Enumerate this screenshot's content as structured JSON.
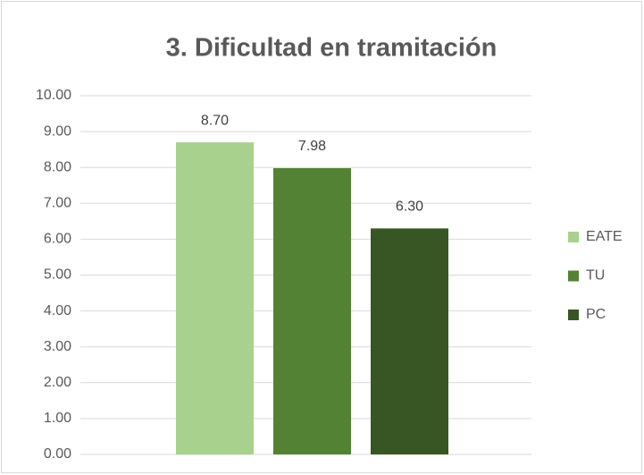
{
  "chart_data": {
    "type": "bar",
    "title": "3. Dificultad en tramitación",
    "categories": [
      null
    ],
    "series": [
      {
        "name": "EATE",
        "color": "#a9d18e",
        "values": [
          8.7
        ],
        "value_labels": [
          "8.70"
        ]
      },
      {
        "name": "TU",
        "color": "#548235",
        "values": [
          7.98
        ],
        "value_labels": [
          "7.98"
        ]
      },
      {
        "name": "PC",
        "color": "#375623",
        "values": [
          6.3
        ],
        "value_labels": [
          "6.30"
        ]
      }
    ],
    "ylim": [
      0,
      10
    ],
    "yticks": [
      {
        "value": 0,
        "label": "0.00"
      },
      {
        "value": 1,
        "label": "1.00"
      },
      {
        "value": 2,
        "label": "2.00"
      },
      {
        "value": 3,
        "label": "3.00"
      },
      {
        "value": 4,
        "label": "4.00"
      },
      {
        "value": 5,
        "label": "5.00"
      },
      {
        "value": 6,
        "label": "6.00"
      },
      {
        "value": 7,
        "label": "7.00"
      },
      {
        "value": 8,
        "label": "8.00"
      },
      {
        "value": 9,
        "label": "9.00"
      },
      {
        "value": 10,
        "label": "10.00"
      }
    ],
    "grid": true,
    "legend": "right"
  }
}
